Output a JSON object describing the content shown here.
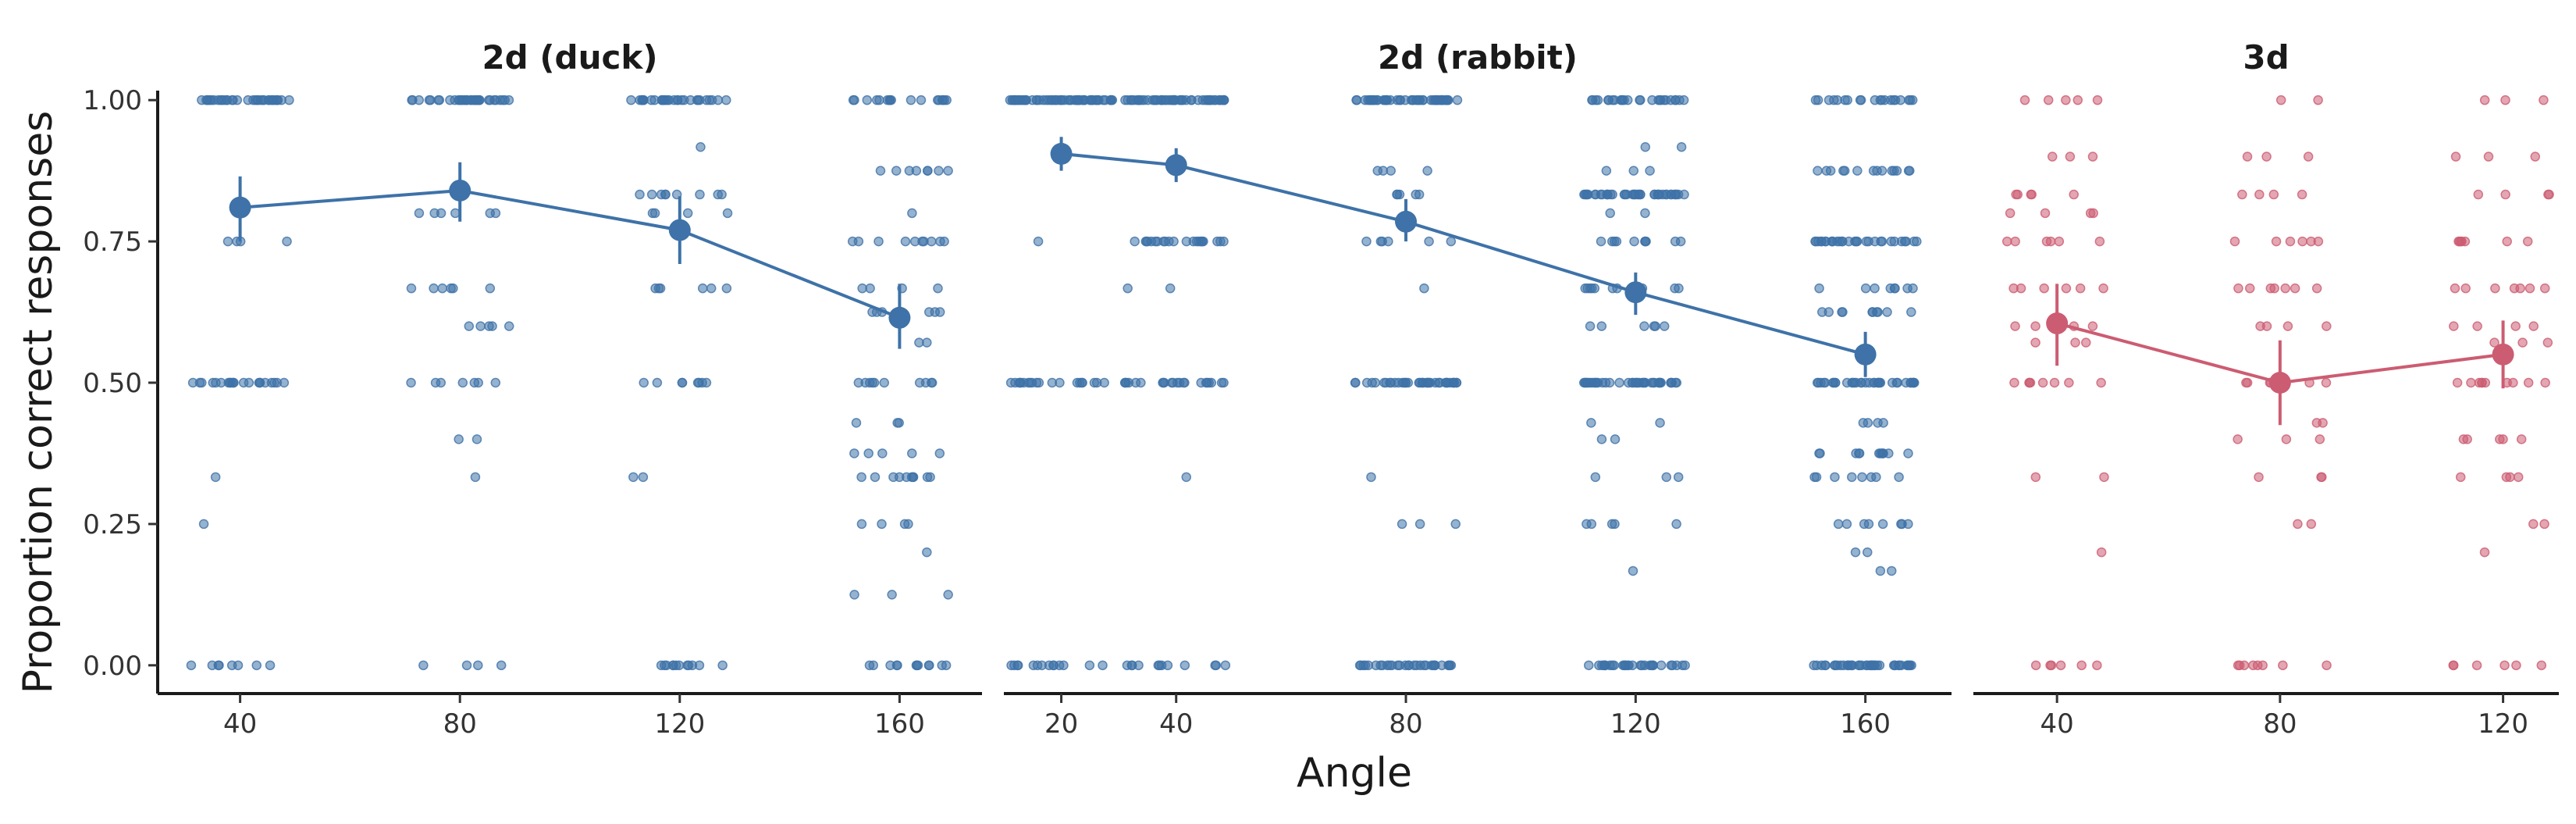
{
  "chart_data": {
    "type": "scatter",
    "ylabel": "Proportion correct responses",
    "xlabel": "Angle",
    "ylim": [
      -0.05,
      1.05
    ],
    "yticks": [
      0.0,
      0.25,
      0.5,
      0.75,
      1.0
    ],
    "ytick_labels": [
      "0.00",
      "0.25",
      "0.50",
      "0.75",
      "1.00"
    ],
    "grid": false,
    "colors": {
      "2d": "#3e72a8",
      "3d": "#cc5c72"
    },
    "panels": [
      {
        "title": "2d (duck)",
        "color": "#3e72a8",
        "xlim": [
          25,
          175
        ],
        "xticks": [
          40,
          80,
          120,
          160
        ],
        "means": [
          {
            "x": 40,
            "y": 0.81,
            "lo": 0.75,
            "hi": 0.865
          },
          {
            "x": 80,
            "y": 0.84,
            "lo": 0.785,
            "hi": 0.89
          },
          {
            "x": 120,
            "y": 0.77,
            "lo": 0.71,
            "hi": 0.83
          },
          {
            "x": 160,
            "y": 0.615,
            "lo": 0.56,
            "hi": 0.675
          }
        ],
        "points": [
          {
            "x": 40,
            "y": 1.0,
            "n": 34
          },
          {
            "x": 40,
            "y": 0.75,
            "n": 4
          },
          {
            "x": 40,
            "y": 0.5,
            "n": 22
          },
          {
            "x": 40,
            "y": 0.333,
            "n": 1
          },
          {
            "x": 40,
            "y": 0.25,
            "n": 1
          },
          {
            "x": 40,
            "y": 0.0,
            "n": 8
          },
          {
            "x": 80,
            "y": 1.0,
            "n": 34
          },
          {
            "x": 80,
            "y": 0.8,
            "n": 6
          },
          {
            "x": 80,
            "y": 0.667,
            "n": 6
          },
          {
            "x": 80,
            "y": 0.6,
            "n": 5
          },
          {
            "x": 80,
            "y": 0.5,
            "n": 7
          },
          {
            "x": 80,
            "y": 0.4,
            "n": 2
          },
          {
            "x": 80,
            "y": 0.333,
            "n": 1
          },
          {
            "x": 80,
            "y": 0.0,
            "n": 4
          },
          {
            "x": 120,
            "y": 1.0,
            "n": 30
          },
          {
            "x": 120,
            "y": 0.917,
            "n": 1
          },
          {
            "x": 120,
            "y": 0.833,
            "n": 9
          },
          {
            "x": 120,
            "y": 0.8,
            "n": 4
          },
          {
            "x": 120,
            "y": 0.667,
            "n": 6
          },
          {
            "x": 120,
            "y": 0.5,
            "n": 8
          },
          {
            "x": 120,
            "y": 0.333,
            "n": 2
          },
          {
            "x": 120,
            "y": 0.0,
            "n": 12
          },
          {
            "x": 160,
            "y": 1.0,
            "n": 18
          },
          {
            "x": 160,
            "y": 0.875,
            "n": 8
          },
          {
            "x": 160,
            "y": 0.8,
            "n": 1
          },
          {
            "x": 160,
            "y": 0.75,
            "n": 10
          },
          {
            "x": 160,
            "y": 0.667,
            "n": 4
          },
          {
            "x": 160,
            "y": 0.625,
            "n": 6
          },
          {
            "x": 160,
            "y": 0.571,
            "n": 2
          },
          {
            "x": 160,
            "y": 0.5,
            "n": 10
          },
          {
            "x": 160,
            "y": 0.429,
            "n": 3
          },
          {
            "x": 160,
            "y": 0.375,
            "n": 5
          },
          {
            "x": 160,
            "y": 0.333,
            "n": 10
          },
          {
            "x": 160,
            "y": 0.25,
            "n": 4
          },
          {
            "x": 160,
            "y": 0.2,
            "n": 1
          },
          {
            "x": 160,
            "y": 0.125,
            "n": 3
          },
          {
            "x": 160,
            "y": 0.0,
            "n": 12
          }
        ]
      },
      {
        "title": "2d (rabbit)",
        "color": "#3e72a8",
        "xlim": [
          10,
          175
        ],
        "xticks": [
          20,
          40,
          80,
          120,
          160
        ],
        "means": [
          {
            "x": 20,
            "y": 0.905,
            "lo": 0.875,
            "hi": 0.935
          },
          {
            "x": 40,
            "y": 0.885,
            "lo": 0.855,
            "hi": 0.915
          },
          {
            "x": 80,
            "y": 0.785,
            "lo": 0.75,
            "hi": 0.825
          },
          {
            "x": 120,
            "y": 0.66,
            "lo": 0.62,
            "hi": 0.695
          },
          {
            "x": 160,
            "y": 0.55,
            "lo": 0.51,
            "hi": 0.59
          }
        ],
        "points": [
          {
            "x": 20,
            "y": 1.0,
            "n": 60
          },
          {
            "x": 20,
            "y": 0.75,
            "n": 1
          },
          {
            "x": 20,
            "y": 0.5,
            "n": 20
          },
          {
            "x": 20,
            "y": 0.0,
            "n": 14
          },
          {
            "x": 40,
            "y": 1.0,
            "n": 55
          },
          {
            "x": 40,
            "y": 0.75,
            "n": 22
          },
          {
            "x": 40,
            "y": 0.667,
            "n": 2
          },
          {
            "x": 40,
            "y": 0.5,
            "n": 22
          },
          {
            "x": 40,
            "y": 0.333,
            "n": 1
          },
          {
            "x": 40,
            "y": 0.0,
            "n": 12
          },
          {
            "x": 80,
            "y": 1.0,
            "n": 50
          },
          {
            "x": 80,
            "y": 0.875,
            "n": 4
          },
          {
            "x": 80,
            "y": 0.833,
            "n": 5
          },
          {
            "x": 80,
            "y": 0.75,
            "n": 6
          },
          {
            "x": 80,
            "y": 0.667,
            "n": 1
          },
          {
            "x": 80,
            "y": 0.5,
            "n": 40
          },
          {
            "x": 80,
            "y": 0.333,
            "n": 1
          },
          {
            "x": 80,
            "y": 0.25,
            "n": 3
          },
          {
            "x": 80,
            "y": 0.0,
            "n": 30
          },
          {
            "x": 120,
            "y": 1.0,
            "n": 26
          },
          {
            "x": 120,
            "y": 0.917,
            "n": 2
          },
          {
            "x": 120,
            "y": 0.875,
            "n": 3
          },
          {
            "x": 120,
            "y": 0.833,
            "n": 40
          },
          {
            "x": 120,
            "y": 0.8,
            "n": 2
          },
          {
            "x": 120,
            "y": 0.75,
            "n": 10
          },
          {
            "x": 120,
            "y": 0.667,
            "n": 12
          },
          {
            "x": 120,
            "y": 0.6,
            "n": 6
          },
          {
            "x": 120,
            "y": 0.5,
            "n": 40
          },
          {
            "x": 120,
            "y": 0.429,
            "n": 2
          },
          {
            "x": 120,
            "y": 0.4,
            "n": 2
          },
          {
            "x": 120,
            "y": 0.333,
            "n": 3
          },
          {
            "x": 120,
            "y": 0.25,
            "n": 5
          },
          {
            "x": 120,
            "y": 0.167,
            "n": 1
          },
          {
            "x": 120,
            "y": 0.0,
            "n": 30
          },
          {
            "x": 160,
            "y": 1.0,
            "n": 20
          },
          {
            "x": 160,
            "y": 0.875,
            "n": 14
          },
          {
            "x": 160,
            "y": 0.75,
            "n": 30
          },
          {
            "x": 160,
            "y": 0.667,
            "n": 8
          },
          {
            "x": 160,
            "y": 0.625,
            "n": 10
          },
          {
            "x": 160,
            "y": 0.5,
            "n": 35
          },
          {
            "x": 160,
            "y": 0.429,
            "n": 4
          },
          {
            "x": 160,
            "y": 0.375,
            "n": 12
          },
          {
            "x": 160,
            "y": 0.333,
            "n": 8
          },
          {
            "x": 160,
            "y": 0.25,
            "n": 8
          },
          {
            "x": 160,
            "y": 0.2,
            "n": 2
          },
          {
            "x": 160,
            "y": 0.167,
            "n": 2
          },
          {
            "x": 160,
            "y": 0.0,
            "n": 40
          }
        ]
      },
      {
        "title": "3d",
        "color": "#cc5c72",
        "xlim": [
          25,
          130
        ],
        "xticks": [
          40,
          80,
          120
        ],
        "means": [
          {
            "x": 40,
            "y": 0.605,
            "lo": 0.53,
            "hi": 0.675
          },
          {
            "x": 80,
            "y": 0.5,
            "lo": 0.425,
            "hi": 0.575
          },
          {
            "x": 120,
            "y": 0.55,
            "lo": 0.49,
            "hi": 0.61
          }
        ],
        "points": [
          {
            "x": 40,
            "y": 1.0,
            "n": 5
          },
          {
            "x": 40,
            "y": 0.9,
            "n": 3
          },
          {
            "x": 40,
            "y": 0.833,
            "n": 5
          },
          {
            "x": 40,
            "y": 0.8,
            "n": 4
          },
          {
            "x": 40,
            "y": 0.75,
            "n": 6
          },
          {
            "x": 40,
            "y": 0.667,
            "n": 6
          },
          {
            "x": 40,
            "y": 0.6,
            "n": 5
          },
          {
            "x": 40,
            "y": 0.571,
            "n": 3
          },
          {
            "x": 40,
            "y": 0.5,
            "n": 8
          },
          {
            "x": 40,
            "y": 0.333,
            "n": 2
          },
          {
            "x": 40,
            "y": 0.2,
            "n": 1
          },
          {
            "x": 40,
            "y": 0.0,
            "n": 6
          },
          {
            "x": 80,
            "y": 1.0,
            "n": 2
          },
          {
            "x": 80,
            "y": 0.9,
            "n": 3
          },
          {
            "x": 80,
            "y": 0.833,
            "n": 4
          },
          {
            "x": 80,
            "y": 0.75,
            "n": 6
          },
          {
            "x": 80,
            "y": 0.667,
            "n": 7
          },
          {
            "x": 80,
            "y": 0.6,
            "n": 4
          },
          {
            "x": 80,
            "y": 0.5,
            "n": 9
          },
          {
            "x": 80,
            "y": 0.429,
            "n": 2
          },
          {
            "x": 80,
            "y": 0.4,
            "n": 3
          },
          {
            "x": 80,
            "y": 0.333,
            "n": 3
          },
          {
            "x": 80,
            "y": 0.25,
            "n": 2
          },
          {
            "x": 80,
            "y": 0.0,
            "n": 8
          },
          {
            "x": 120,
            "y": 1.0,
            "n": 3
          },
          {
            "x": 120,
            "y": 0.9,
            "n": 3
          },
          {
            "x": 120,
            "y": 0.833,
            "n": 4
          },
          {
            "x": 120,
            "y": 0.75,
            "n": 7
          },
          {
            "x": 120,
            "y": 0.667,
            "n": 7
          },
          {
            "x": 120,
            "y": 0.6,
            "n": 4
          },
          {
            "x": 120,
            "y": 0.571,
            "n": 3
          },
          {
            "x": 120,
            "y": 0.5,
            "n": 10
          },
          {
            "x": 120,
            "y": 0.4,
            "n": 5
          },
          {
            "x": 120,
            "y": 0.333,
            "n": 4
          },
          {
            "x": 120,
            "y": 0.25,
            "n": 2
          },
          {
            "x": 120,
            "y": 0.2,
            "n": 1
          },
          {
            "x": 120,
            "y": 0.0,
            "n": 6
          }
        ]
      }
    ]
  }
}
